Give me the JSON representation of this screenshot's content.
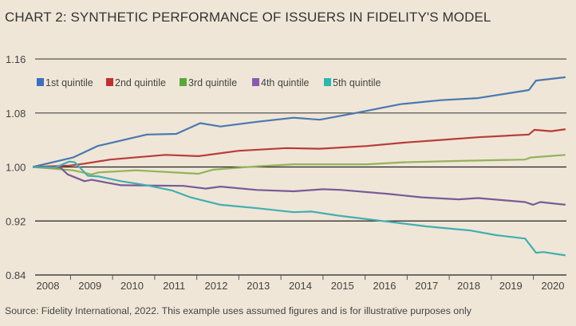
{
  "chart_data": {
    "type": "line",
    "title": "CHART 2: SYNTHETIC PERFORMANCE OF ISSUERS IN FIDELITY'S MODEL",
    "source": "Source: Fidelity International, 2022. This example uses assumed figures and is for illustrative purposes only",
    "xlabel": "",
    "ylabel": "",
    "ylim": [
      0.84,
      1.16
    ],
    "xlim": [
      2008.14,
      2020.8
    ],
    "yticks": [
      "1.16",
      "1.08",
      "1.00",
      "0.92",
      "0.84"
    ],
    "ytick_values": [
      1.16,
      1.08,
      1.0,
      0.92,
      0.84
    ],
    "xticks": [
      "2008",
      "2009",
      "2010",
      "2011",
      "2012",
      "2013",
      "2014",
      "2015",
      "2016",
      "2017",
      "2018",
      "2019",
      "2020"
    ],
    "grid": "horizontal",
    "legend_placement": "top-left",
    "series": [
      {
        "name": "1st quintile",
        "color": "#4a78b0",
        "legend_color": "#3b6fc0",
        "x": [
          2008.14,
          2009.1,
          2009.68,
          2010.85,
          2011.55,
          2012.12,
          2012.6,
          2013.47,
          2014.34,
          2014.96,
          2015.74,
          2016.88,
          2017.83,
          2018.72,
          2019.93,
          2020.1,
          2020.8
        ],
        "y": [
          1.0,
          1.014,
          1.031,
          1.048,
          1.049,
          1.065,
          1.06,
          1.067,
          1.073,
          1.07,
          1.079,
          1.093,
          1.099,
          1.102,
          1.114,
          1.128,
          1.133
        ]
      },
      {
        "name": "2nd quintile",
        "color": "#b83c3a",
        "legend_color": "#c0302f",
        "x": [
          2008.14,
          2009.01,
          2009.37,
          2009.98,
          2011.29,
          2012.08,
          2013.03,
          2014.17,
          2014.96,
          2016.08,
          2016.95,
          2017.83,
          2018.72,
          2019.93,
          2020.06,
          2020.46,
          2020.8
        ],
        "y": [
          1.0,
          1.002,
          1.005,
          1.011,
          1.018,
          1.016,
          1.024,
          1.028,
          1.027,
          1.031,
          1.036,
          1.04,
          1.044,
          1.048,
          1.055,
          1.053,
          1.056
        ]
      },
      {
        "name": "3rd quintile",
        "color": "#93b25a",
        "legend_color": "#5aa83a",
        "x": [
          2008.14,
          2009.1,
          2009.54,
          2009.71,
          2010.59,
          2012.08,
          2012.42,
          2013.47,
          2014.34,
          2016.08,
          2016.95,
          2018.26,
          2019.84,
          2019.97,
          2020.8
        ],
        "y": [
          1.0,
          0.995,
          0.989,
          0.992,
          0.995,
          0.99,
          0.996,
          1.001,
          1.004,
          1.004,
          1.007,
          1.009,
          1.011,
          1.014,
          1.018
        ]
      },
      {
        "name": "4th quintile",
        "color": "#7a5a98",
        "legend_color": "#8a5ab0",
        "x": [
          2008.14,
          2008.8,
          2008.97,
          2009.37,
          2009.54,
          2010.24,
          2011.72,
          2012.25,
          2012.6,
          2013.47,
          2014.34,
          2015.04,
          2015.48,
          2016.61,
          2017.39,
          2018.26,
          2018.72,
          2019.84,
          2020.03,
          2020.2,
          2020.8
        ],
        "y": [
          1.0,
          0.999,
          0.989,
          0.979,
          0.981,
          0.973,
          0.972,
          0.968,
          0.971,
          0.966,
          0.964,
          0.967,
          0.966,
          0.96,
          0.955,
          0.952,
          0.954,
          0.948,
          0.944,
          0.948,
          0.944
        ]
      },
      {
        "name": "5th quintile",
        "color": "#42aeb0",
        "legend_color": "#2ab8b0",
        "x": [
          2008.14,
          2008.67,
          2009.01,
          2009.14,
          2009.45,
          2009.71,
          2010.24,
          2010.85,
          2011.46,
          2011.89,
          2012.6,
          2013.47,
          2014.34,
          2014.77,
          2015.4,
          2016.44,
          2017.49,
          2018.53,
          2019.15,
          2019.84,
          2020.1,
          2020.27,
          2020.8
        ],
        "y": [
          1.0,
          0.999,
          1.008,
          1.007,
          0.987,
          0.986,
          0.979,
          0.973,
          0.965,
          0.955,
          0.944,
          0.939,
          0.933,
          0.934,
          0.928,
          0.92,
          0.912,
          0.906,
          0.899,
          0.894,
          0.873,
          0.874,
          0.869
        ]
      }
    ]
  }
}
